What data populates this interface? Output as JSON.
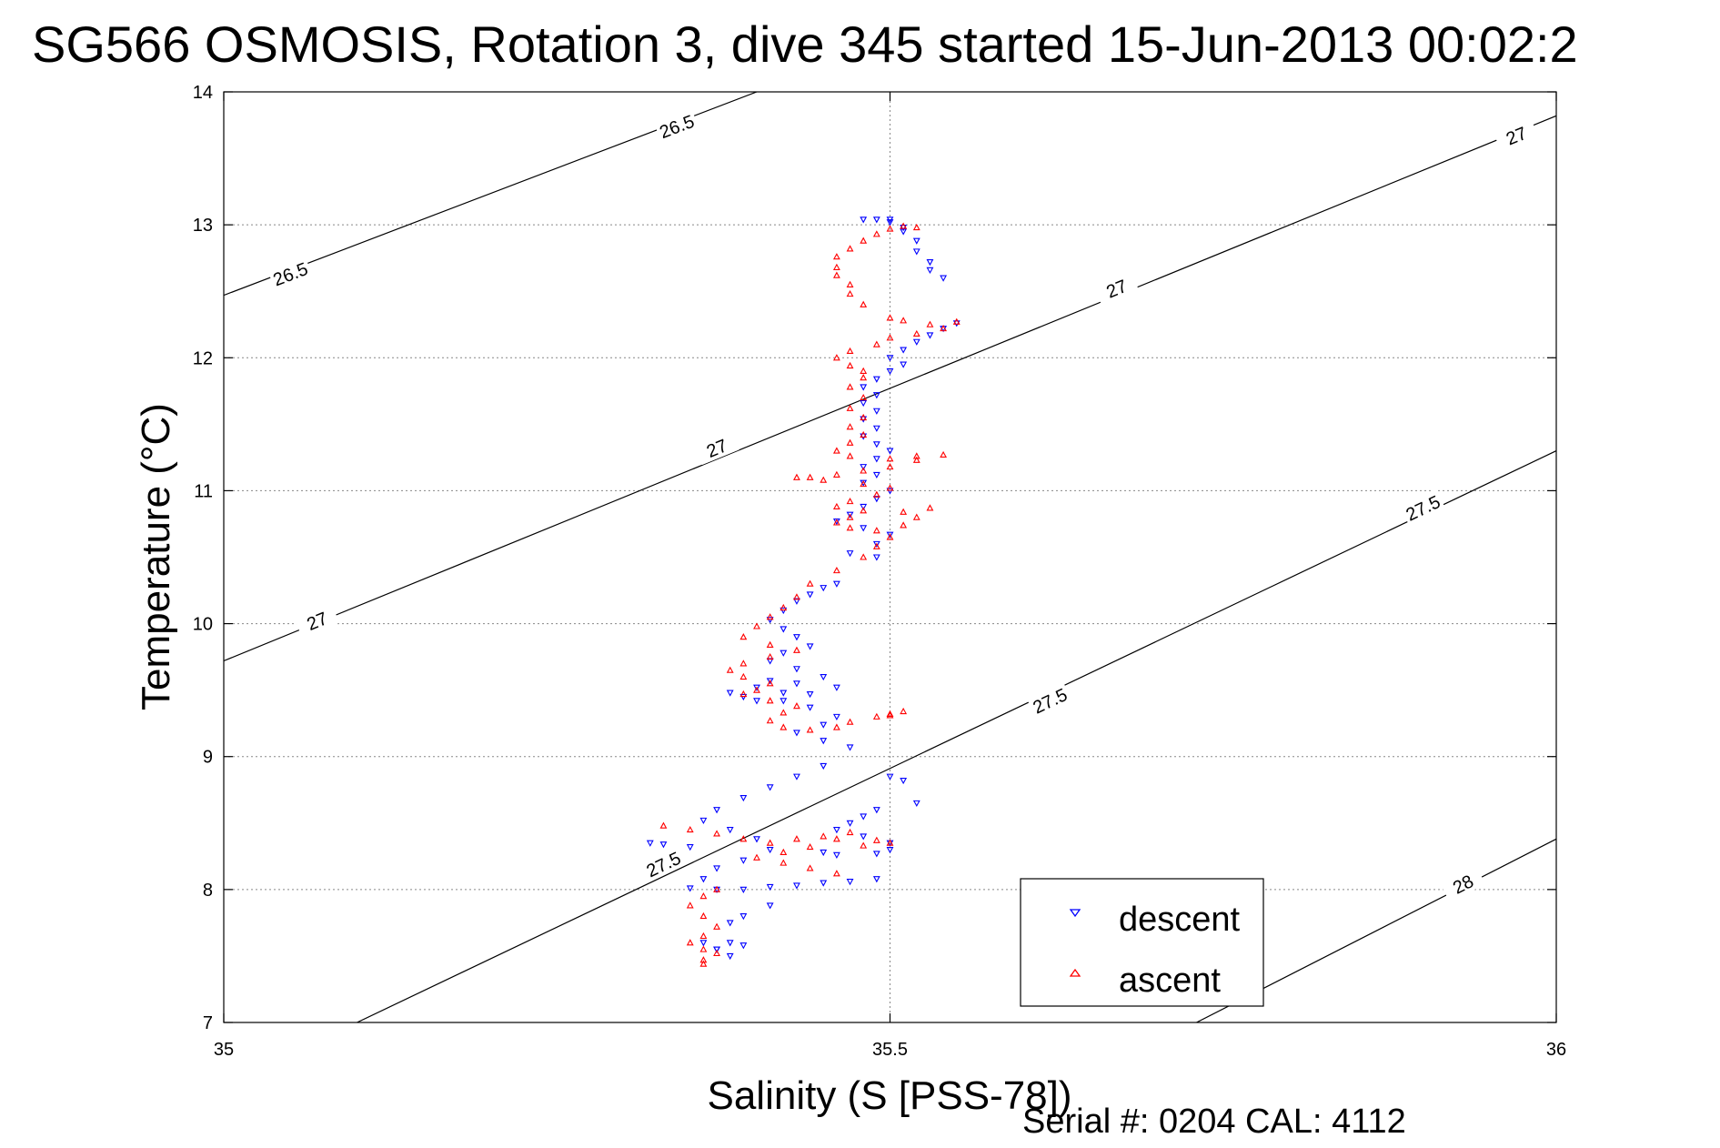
{
  "chart_data": {
    "type": "scatter",
    "title": "SG566 OSMOSIS, Rotation 3, dive 345 started 15-Jun-2013 00:02:2",
    "xlabel": "Salinity (S [PSS-78])",
    "ylabel": "Temperature (°C)",
    "xlim": [
      35,
      36
    ],
    "ylim": [
      7,
      14
    ],
    "x_ticks": [
      35,
      35.5,
      36
    ],
    "x_tick_labels": [
      "35",
      "35.5",
      "36"
    ],
    "y_ticks": [
      7,
      8,
      9,
      10,
      11,
      12,
      13,
      14
    ],
    "y_tick_labels": [
      "7",
      "8",
      "9",
      "10",
      "11",
      "12",
      "13",
      "14"
    ],
    "grid": true,
    "legend_position": "bottom-right",
    "footer": "Serial #: 0204  CAL: 4112",
    "density_contours": [
      {
        "level": "26.5",
        "line": [
          [
            35,
            12.47
          ],
          [
            35.4,
            14
          ]
        ],
        "labels": [
          [
            35.05,
            12.63
          ],
          [
            35.34,
            13.74
          ]
        ]
      },
      {
        "level": "27",
        "line": [
          [
            35,
            9.72
          ],
          [
            36,
            13.82
          ]
        ],
        "labels": [
          [
            35.07,
            10.02
          ],
          [
            35.37,
            11.32
          ],
          [
            35.67,
            12.52
          ],
          [
            35.97,
            13.67
          ]
        ]
      },
      {
        "level": "27.5",
        "line": [
          [
            35.1,
            7
          ],
          [
            36,
            11.3
          ]
        ],
        "labels": [
          [
            35.33,
            8.19
          ],
          [
            35.62,
            9.42
          ],
          [
            35.9,
            10.87
          ]
        ]
      },
      {
        "level": "28",
        "line": [
          [
            35.73,
            7
          ],
          [
            36,
            8.38
          ]
        ],
        "labels": [
          [
            35.93,
            8.04
          ]
        ]
      }
    ],
    "series": [
      {
        "name": "descent",
        "color": "#0000ff",
        "marker": "triangle-down",
        "points": [
          [
            35.48,
            13.04
          ],
          [
            35.49,
            13.04
          ],
          [
            35.5,
            13.04
          ],
          [
            35.5,
            13.02
          ],
          [
            35.51,
            12.98
          ],
          [
            35.51,
            12.95
          ],
          [
            35.52,
            12.88
          ],
          [
            35.52,
            12.8
          ],
          [
            35.53,
            12.72
          ],
          [
            35.53,
            12.66
          ],
          [
            35.54,
            12.6
          ],
          [
            35.55,
            12.26
          ],
          [
            35.54,
            12.22
          ],
          [
            35.53,
            12.17
          ],
          [
            35.52,
            12.12
          ],
          [
            35.51,
            12.06
          ],
          [
            35.5,
            12.0
          ],
          [
            35.51,
            11.95
          ],
          [
            35.5,
            11.9
          ],
          [
            35.49,
            11.84
          ],
          [
            35.48,
            11.78
          ],
          [
            35.49,
            11.72
          ],
          [
            35.48,
            11.66
          ],
          [
            35.49,
            11.6
          ],
          [
            35.48,
            11.54
          ],
          [
            35.49,
            11.47
          ],
          [
            35.48,
            11.41
          ],
          [
            35.49,
            11.35
          ],
          [
            35.5,
            11.3
          ],
          [
            35.49,
            11.24
          ],
          [
            35.48,
            11.18
          ],
          [
            35.49,
            11.12
          ],
          [
            35.48,
            11.06
          ],
          [
            35.5,
            11.0
          ],
          [
            35.49,
            10.94
          ],
          [
            35.48,
            10.88
          ],
          [
            35.47,
            10.82
          ],
          [
            35.46,
            10.77
          ],
          [
            35.48,
            10.72
          ],
          [
            35.5,
            10.67
          ],
          [
            35.49,
            10.6
          ],
          [
            35.47,
            10.53
          ],
          [
            35.49,
            10.5
          ],
          [
            35.46,
            10.3
          ],
          [
            35.45,
            10.27
          ],
          [
            35.44,
            10.22
          ],
          [
            35.43,
            10.17
          ],
          [
            35.42,
            10.1
          ],
          [
            35.41,
            10.03
          ],
          [
            35.42,
            9.96
          ],
          [
            35.43,
            9.9
          ],
          [
            35.44,
            9.83
          ],
          [
            35.42,
            9.78
          ],
          [
            35.41,
            9.72
          ],
          [
            35.43,
            9.66
          ],
          [
            35.45,
            9.6
          ],
          [
            35.46,
            9.52
          ],
          [
            35.44,
            9.47
          ],
          [
            35.42,
            9.42
          ],
          [
            35.44,
            9.37
          ],
          [
            35.46,
            9.3
          ],
          [
            35.45,
            9.24
          ],
          [
            35.43,
            9.18
          ],
          [
            35.45,
            9.12
          ],
          [
            35.47,
            9.07
          ],
          [
            35.39,
            9.45
          ],
          [
            35.38,
            9.48
          ],
          [
            35.4,
            9.52
          ],
          [
            35.41,
            9.57
          ],
          [
            35.43,
            9.55
          ],
          [
            35.42,
            9.48
          ],
          [
            35.4,
            9.42
          ],
          [
            35.45,
            8.93
          ],
          [
            35.43,
            8.85
          ],
          [
            35.41,
            8.77
          ],
          [
            35.39,
            8.69
          ],
          [
            35.37,
            8.6
          ],
          [
            35.36,
            8.52
          ],
          [
            35.38,
            8.45
          ],
          [
            35.4,
            8.38
          ],
          [
            35.41,
            8.3
          ],
          [
            35.39,
            8.22
          ],
          [
            35.37,
            8.16
          ],
          [
            35.36,
            8.08
          ],
          [
            35.35,
            8.01
          ],
          [
            35.37,
            8.0
          ],
          [
            35.39,
            8.0
          ],
          [
            35.41,
            8.02
          ],
          [
            35.43,
            8.03
          ],
          [
            35.45,
            8.05
          ],
          [
            35.47,
            8.06
          ],
          [
            35.49,
            8.08
          ],
          [
            35.5,
            8.85
          ],
          [
            35.51,
            8.82
          ],
          [
            35.52,
            8.65
          ],
          [
            35.49,
            8.6
          ],
          [
            35.48,
            8.55
          ],
          [
            35.47,
            8.5
          ],
          [
            35.46,
            8.45
          ],
          [
            35.48,
            8.4
          ],
          [
            35.5,
            8.35
          ],
          [
            35.5,
            8.3
          ],
          [
            35.49,
            8.27
          ],
          [
            35.46,
            8.26
          ],
          [
            35.45,
            8.28
          ],
          [
            35.32,
            8.35
          ],
          [
            35.33,
            8.34
          ],
          [
            35.35,
            8.32
          ],
          [
            35.37,
            7.55
          ],
          [
            35.38,
            7.6
          ],
          [
            35.39,
            7.58
          ],
          [
            35.38,
            7.5
          ],
          [
            35.37,
            7.55
          ],
          [
            35.36,
            7.6
          ],
          [
            35.38,
            7.75
          ],
          [
            35.39,
            7.8
          ],
          [
            35.41,
            7.88
          ]
        ]
      },
      {
        "name": "ascent",
        "color": "#ff0000",
        "marker": "triangle-up",
        "points": [
          [
            35.52,
            12.98
          ],
          [
            35.51,
            12.99
          ],
          [
            35.5,
            12.97
          ],
          [
            35.49,
            12.93
          ],
          [
            35.48,
            12.88
          ],
          [
            35.47,
            12.82
          ],
          [
            35.46,
            12.76
          ],
          [
            35.46,
            12.68
          ],
          [
            35.46,
            12.62
          ],
          [
            35.47,
            12.55
          ],
          [
            35.47,
            12.48
          ],
          [
            35.48,
            12.4
          ],
          [
            35.5,
            12.3
          ],
          [
            35.51,
            12.28
          ],
          [
            35.53,
            12.25
          ],
          [
            35.55,
            12.27
          ],
          [
            35.54,
            12.22
          ],
          [
            35.52,
            12.18
          ],
          [
            35.5,
            12.15
          ],
          [
            35.49,
            12.1
          ],
          [
            35.47,
            12.05
          ],
          [
            35.46,
            12.0
          ],
          [
            35.47,
            11.94
          ],
          [
            35.48,
            11.9
          ],
          [
            35.48,
            11.85
          ],
          [
            35.47,
            11.78
          ],
          [
            35.48,
            11.7
          ],
          [
            35.47,
            11.62
          ],
          [
            35.48,
            11.55
          ],
          [
            35.47,
            11.48
          ],
          [
            35.48,
            11.42
          ],
          [
            35.47,
            11.36
          ],
          [
            35.46,
            11.3
          ],
          [
            35.47,
            11.26
          ],
          [
            35.5,
            11.24
          ],
          [
            35.52,
            11.26
          ],
          [
            35.54,
            11.27
          ],
          [
            35.52,
            11.23
          ],
          [
            35.5,
            11.18
          ],
          [
            35.48,
            11.15
          ],
          [
            35.46,
            11.12
          ],
          [
            35.44,
            11.1
          ],
          [
            35.43,
            11.1
          ],
          [
            35.45,
            11.08
          ],
          [
            35.48,
            11.05
          ],
          [
            35.5,
            11.02
          ],
          [
            35.49,
            10.97
          ],
          [
            35.47,
            10.92
          ],
          [
            35.46,
            10.88
          ],
          [
            35.48,
            10.85
          ],
          [
            35.51,
            10.84
          ],
          [
            35.53,
            10.87
          ],
          [
            35.52,
            10.8
          ],
          [
            35.51,
            10.74
          ],
          [
            35.49,
            10.7
          ],
          [
            35.47,
            10.72
          ],
          [
            35.46,
            10.76
          ],
          [
            35.47,
            10.8
          ],
          [
            35.5,
            10.65
          ],
          [
            35.49,
            10.58
          ],
          [
            35.48,
            10.5
          ],
          [
            35.46,
            10.4
          ],
          [
            35.44,
            10.3
          ],
          [
            35.43,
            10.2
          ],
          [
            35.42,
            10.12
          ],
          [
            35.41,
            10.05
          ],
          [
            35.4,
            9.98
          ],
          [
            35.39,
            9.9
          ],
          [
            35.41,
            9.84
          ],
          [
            35.43,
            9.8
          ],
          [
            35.41,
            9.75
          ],
          [
            35.39,
            9.7
          ],
          [
            35.38,
            9.65
          ],
          [
            35.39,
            9.6
          ],
          [
            35.41,
            9.55
          ],
          [
            35.4,
            9.5
          ],
          [
            35.39,
            9.47
          ],
          [
            35.41,
            9.42
          ],
          [
            35.43,
            9.38
          ],
          [
            35.42,
            9.33
          ],
          [
            35.41,
            9.27
          ],
          [
            35.42,
            9.22
          ],
          [
            35.44,
            9.2
          ],
          [
            35.46,
            9.22
          ],
          [
            35.47,
            9.26
          ],
          [
            35.49,
            9.3
          ],
          [
            35.5,
            9.32
          ],
          [
            35.51,
            9.34
          ],
          [
            35.5,
            9.31
          ],
          [
            35.33,
            8.48
          ],
          [
            35.35,
            8.45
          ],
          [
            35.37,
            8.42
          ],
          [
            35.39,
            8.38
          ],
          [
            35.41,
            8.35
          ],
          [
            35.43,
            8.38
          ],
          [
            35.45,
            8.4
          ],
          [
            35.47,
            8.43
          ],
          [
            35.46,
            8.38
          ],
          [
            35.44,
            8.32
          ],
          [
            35.42,
            8.28
          ],
          [
            35.4,
            8.24
          ],
          [
            35.42,
            8.2
          ],
          [
            35.44,
            8.16
          ],
          [
            35.46,
            8.12
          ],
          [
            35.5,
            8.35
          ],
          [
            35.49,
            8.37
          ],
          [
            35.48,
            8.33
          ],
          [
            35.37,
            8.0
          ],
          [
            35.36,
            7.95
          ],
          [
            35.35,
            7.88
          ],
          [
            35.36,
            7.8
          ],
          [
            35.37,
            7.72
          ],
          [
            35.36,
            7.65
          ],
          [
            35.35,
            7.6
          ],
          [
            35.36,
            7.55
          ],
          [
            35.37,
            7.52
          ],
          [
            35.36,
            7.47
          ],
          [
            35.36,
            7.44
          ]
        ]
      }
    ]
  }
}
